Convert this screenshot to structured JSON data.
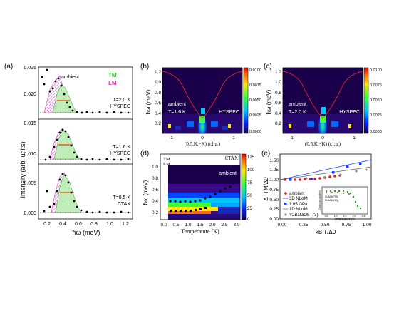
{
  "panels": {
    "a": {
      "label": "(a)",
      "ylabel": "Intensity (arb. units)",
      "xlabel": "ħω (meV)",
      "xticks": [
        "0.2",
        "0.4",
        "0.6",
        "0.8",
        "1.0",
        "1.2"
      ],
      "yticks": [
        "0.025",
        "0.020",
        "0.015",
        "0.010",
        "0.005",
        "0.000"
      ],
      "legend_tm": "TM",
      "legend_lm": "LM",
      "tag_ambient": "ambient",
      "sub_labels": [
        {
          "temp": "T=2.0 K",
          "instr": "HYSPEC"
        },
        {
          "temp": "T=1.6 K",
          "instr": "HYSPEC"
        },
        {
          "temp": "T=0.5 K",
          "instr": "CTAX"
        }
      ]
    },
    "b": {
      "label": "(b)",
      "ylabel": "ħω (meV)",
      "xlabel": "(0.5,K,−K) (r.l.u.)",
      "yticks": [
        "1.2",
        "1.0",
        "0.8",
        "0.6",
        "0.4",
        "0.2"
      ],
      "xticks": [
        "-1",
        "0",
        "1"
      ],
      "colorbar": [
        "0.0100",
        "0.0075",
        "0.0050",
        "0.0025",
        "0.0000"
      ],
      "tag": "ambient",
      "temp": "T=1.6 K",
      "instr": "HYSPEC"
    },
    "c": {
      "label": "(c)",
      "ylabel": "ħω (meV)",
      "xlabel": "(0.5,K,−K) (r.l.u.)",
      "yticks": [
        "1.2",
        "1.0",
        "0.8",
        "0.6",
        "0.4",
        "0.2"
      ],
      "xticks": [
        "-1",
        "0",
        "1"
      ],
      "colorbar": [
        "0.0100",
        "0.0075",
        "0.0050",
        "0.0025",
        "0.0000"
      ],
      "tag": "ambient",
      "temp": "T=2.0 K",
      "instr": "HYSPEC"
    },
    "d": {
      "label": "(d)",
      "ylabel": "ħω (meV)",
      "xlabel": "Temperature (K)",
      "yticks": [
        "1.0",
        "0.8",
        "0.6",
        "0.4",
        "0.2"
      ],
      "xticks": [
        "0.0",
        "0.5",
        "1.0",
        "1.5",
        "2.0",
        "2.5",
        "3.0"
      ],
      "colorbar": [
        "125",
        "100",
        "75",
        "50",
        "25",
        "0"
      ],
      "legend_tm": "TM",
      "legend_lm": "LM",
      "instr": "CTAX",
      "tag": "ambient"
    },
    "e": {
      "label": "(e)",
      "ylabel": "Δ_TM/Δ0",
      "xlabel": "kB T/Δ0",
      "xticks": [
        "0.00",
        "0.25",
        "0.50",
        "0.75",
        "1.00"
      ],
      "yticks": [
        "1.50",
        "1.25",
        "1.00",
        "0.75",
        "0.50",
        "0.25",
        "0.00"
      ],
      "legend": [
        "ambient",
        "3D NLσM",
        "1.05 GPa",
        "1D NLσM",
        "Y2BaNiO5 [73]"
      ],
      "inset_xlabel": "Temperature (K)",
      "inset_ylabel": "Chain occupation",
      "inset_xticks": [
        "0.5",
        "1.0",
        "1.5",
        "2.0",
        "2.5"
      ],
      "inset_legend": [
        "SUM[θ(TM)]",
        "SUM[θ(LM)]"
      ]
    }
  }
}
